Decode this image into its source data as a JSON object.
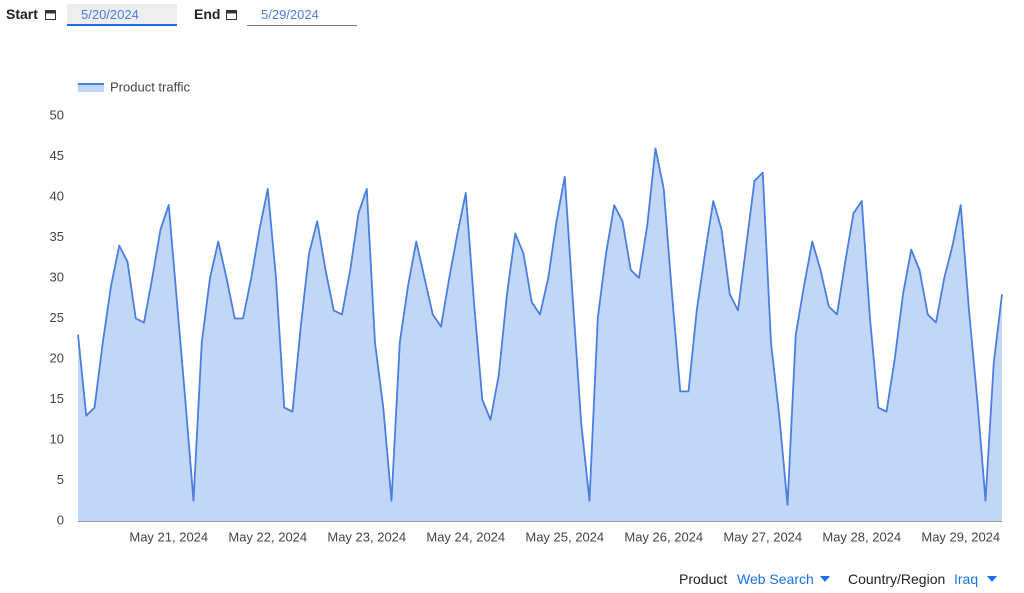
{
  "controls": {
    "start_label": "Start",
    "start_date": "5/20/2024",
    "end_label": "End",
    "end_date": "5/29/2024"
  },
  "chart_data": {
    "type": "area",
    "categories": [
      null,
      null,
      null,
      null,
      null,
      null,
      null,
      null,
      null,
      null,
      null,
      "May 21, 2024",
      null,
      null,
      null,
      null,
      null,
      null,
      null,
      null,
      null,
      null,
      null,
      "May 22, 2024",
      null,
      null,
      null,
      null,
      null,
      null,
      null,
      null,
      null,
      null,
      null,
      "May 23, 2024",
      null,
      null,
      null,
      null,
      null,
      null,
      null,
      null,
      null,
      null,
      null,
      "May 24, 2024",
      null,
      null,
      null,
      null,
      null,
      null,
      null,
      null,
      null,
      null,
      null,
      "May 25, 2024",
      null,
      null,
      null,
      null,
      null,
      null,
      null,
      null,
      null,
      null,
      null,
      "May 26, 2024",
      null,
      null,
      null,
      null,
      null,
      null,
      null,
      null,
      null,
      null,
      null,
      "May 27, 2024",
      null,
      null,
      null,
      null,
      null,
      null,
      null,
      null,
      null,
      null,
      null,
      "May 28, 2024",
      null,
      null,
      null,
      null,
      null,
      null,
      null,
      null,
      null,
      null,
      null,
      "May 29, 2024",
      null,
      null,
      null,
      null,
      null
    ],
    "series": [
      {
        "name": "Product traffic",
        "color": "#4a7fe0",
        "fill": "#c2d6f7",
        "values": [
          23,
          13,
          14,
          22,
          29,
          34,
          32,
          25,
          24.5,
          30,
          36,
          39,
          27,
          15,
          2.5,
          22,
          30,
          34.5,
          30,
          25,
          25,
          30,
          36,
          41,
          30,
          14,
          13.5,
          24,
          33,
          37,
          31,
          26,
          25.5,
          31,
          38,
          41,
          22,
          14,
          2.5,
          22,
          29,
          34.5,
          30,
          25.5,
          24,
          30,
          35.5,
          40.5,
          27,
          15,
          12.5,
          18,
          28,
          35.5,
          33,
          27,
          25.5,
          30,
          37,
          42.5,
          27,
          12,
          2.5,
          25,
          33,
          39,
          37,
          31,
          30,
          36.5,
          46,
          41,
          28,
          16,
          16,
          26,
          33,
          39.5,
          36,
          28,
          26,
          34,
          42,
          43,
          22,
          13,
          2,
          23,
          29,
          34.5,
          31,
          26.5,
          25.5,
          32,
          38,
          39.5,
          25,
          14,
          13.5,
          20,
          28,
          33.5,
          31,
          25.5,
          24.5,
          30,
          34,
          39,
          26,
          15,
          2.5,
          19.5,
          28
        ]
      }
    ],
    "ylim": [
      0,
      50
    ],
    "yticks": [
      0,
      5,
      10,
      15,
      20,
      25,
      30,
      35,
      40,
      45,
      50
    ],
    "grid": false,
    "legend": "top-left"
  },
  "filters": {
    "product_label": "Product",
    "product_value": "Web Search",
    "country_label": "Country/Region",
    "country_value": "Iraq"
  }
}
